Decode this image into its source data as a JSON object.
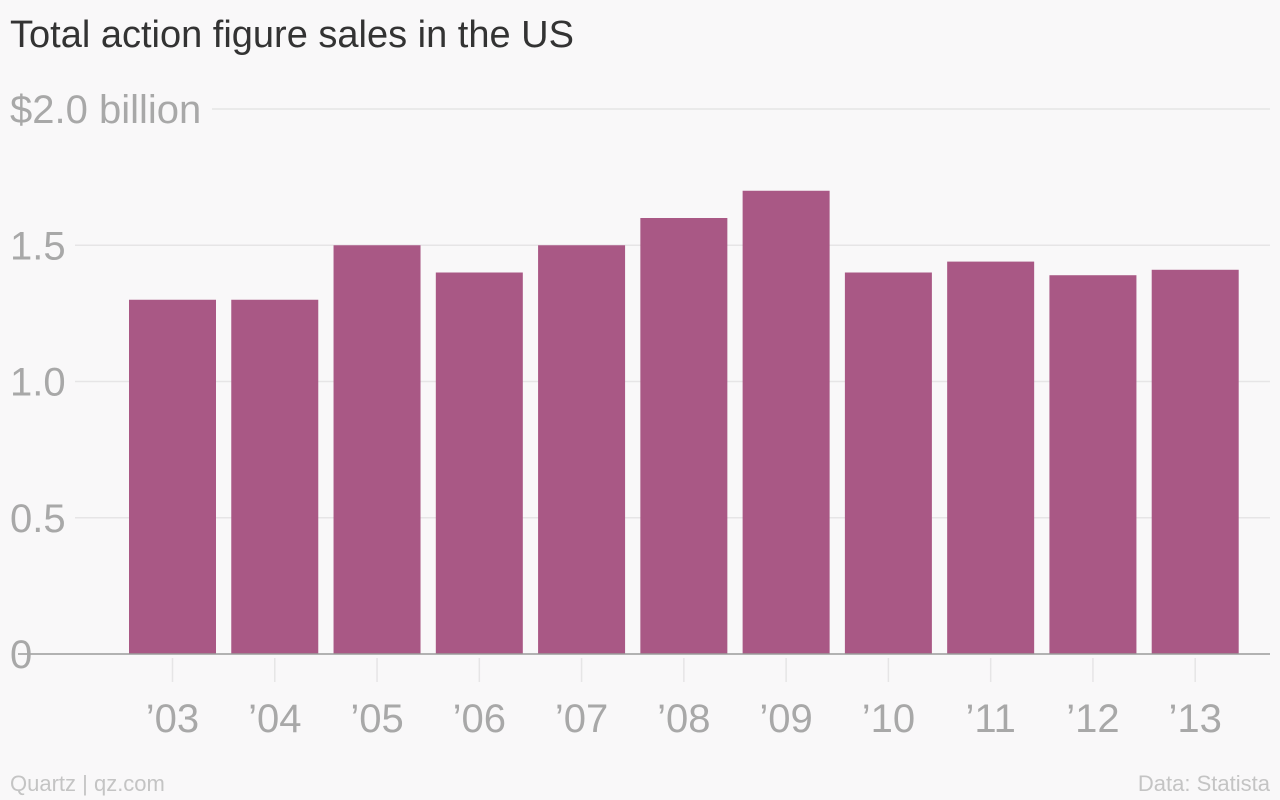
{
  "title": "Total action figure sales in the US",
  "footer": {
    "source_left": "Quartz | qz.com",
    "source_right": "Data: Statista"
  },
  "colors": {
    "bar": "#a95885",
    "grid": "#e6e5e6",
    "baseline": "#9a9a9a",
    "tick_text": "#a8a8a8",
    "title_text": "#333333",
    "background": "#f9f8f9"
  },
  "chart_data": {
    "type": "bar",
    "title": "Total action figure sales in the US",
    "xlabel": "",
    "ylabel": "",
    "categories": [
      "’03",
      "’04",
      "’05",
      "’06",
      "’07",
      "’08",
      "’09",
      "’10",
      "’11",
      "’12",
      "’13"
    ],
    "values": [
      1.3,
      1.3,
      1.5,
      1.4,
      1.5,
      1.6,
      1.7,
      1.4,
      1.44,
      1.39,
      1.41
    ],
    "ylim": [
      0,
      2.0
    ],
    "yticks": [
      {
        "value": 0,
        "label": "0"
      },
      {
        "value": 0.5,
        "label": "0.5"
      },
      {
        "value": 1.0,
        "label": "1.0"
      },
      {
        "value": 1.5,
        "label": "1.5"
      },
      {
        "value": 2.0,
        "label": "$2.0 billion"
      }
    ],
    "grid": true,
    "legend": "none"
  }
}
